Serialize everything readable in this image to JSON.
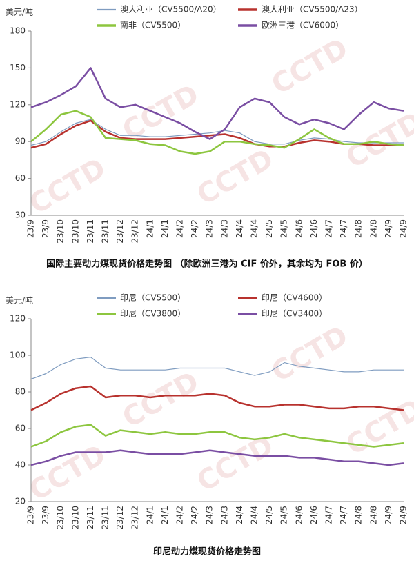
{
  "chart_data": [
    {
      "type": "line",
      "title": "国际主要动力煤现货价格走势图 （除欧洲三港为 CIF 价外，其余均为 FOB 价）",
      "y_label": "美元/吨",
      "watermark": "CCTD",
      "categories": [
        "23/9",
        "23/9",
        "23/10",
        "23/10",
        "23/11",
        "23/11",
        "23/12",
        "23/12",
        "24/1",
        "24/1",
        "24/2",
        "24/2",
        "24/3",
        "24/3",
        "24/4",
        "24/4",
        "24/5",
        "24/5",
        "24/6",
        "24/6",
        "24/7",
        "24/7",
        "24/8",
        "24/8",
        "24/9",
        "24/9"
      ],
      "ylim": [
        30,
        180
      ],
      "yticks": [
        30,
        60,
        90,
        120,
        150,
        180
      ],
      "series": [
        {
          "name": "澳大利亚（CV5500/A20）",
          "color": "#7f9cc0",
          "width": 1.2,
          "values": [
            87,
            90,
            98,
            105,
            108,
            100,
            95,
            95,
            94,
            94,
            95,
            96,
            97,
            99,
            97,
            90,
            88,
            88,
            91,
            93,
            92,
            90,
            89,
            89,
            89,
            89
          ]
        },
        {
          "name": "澳大利亚（CV5500/A23）",
          "color": "#b8322e",
          "width": 2.5,
          "values": [
            85,
            88,
            96,
            103,
            107,
            98,
            93,
            92,
            92,
            92,
            93,
            94,
            95,
            96,
            93,
            88,
            86,
            86,
            89,
            91,
            90,
            88,
            88,
            87,
            87,
            87
          ]
        },
        {
          "name": "南非（CV5500）",
          "color": "#8dc63f",
          "width": 2.5,
          "values": [
            90,
            100,
            112,
            115,
            110,
            93,
            92,
            91,
            88,
            87,
            82,
            80,
            82,
            90,
            90,
            88,
            87,
            85,
            92,
            100,
            93,
            88,
            88,
            90,
            88,
            87
          ]
        },
        {
          "name": "欧洲三港（CV6000）",
          "color": "#7a4ea3",
          "width": 2.5,
          "values": [
            118,
            122,
            128,
            135,
            150,
            125,
            118,
            120,
            115,
            110,
            105,
            98,
            92,
            100,
            118,
            125,
            122,
            110,
            104,
            108,
            105,
            100,
            112,
            122,
            117,
            115
          ]
        }
      ]
    },
    {
      "type": "line",
      "title": "印尼动力煤现货价格走势图",
      "y_label": "美元/吨",
      "watermark": "CCTD",
      "categories": [
        "23/9",
        "23/9",
        "23/10",
        "23/10",
        "23/11",
        "23/11",
        "23/12",
        "23/12",
        "24/1",
        "24/1",
        "24/2",
        "24/2",
        "24/3",
        "24/3",
        "24/4",
        "24/4",
        "24/5",
        "24/5",
        "24/6",
        "24/6",
        "24/7",
        "24/7",
        "24/8",
        "24/8",
        "24/9",
        "24/9"
      ],
      "ylim": [
        20,
        120
      ],
      "yticks": [
        20,
        40,
        60,
        80,
        100,
        120
      ],
      "series": [
        {
          "name": "印尼（CV5500）",
          "color": "#7f9cc0",
          "width": 1.2,
          "values": [
            87,
            90,
            95,
            98,
            99,
            93,
            92,
            92,
            92,
            92,
            93,
            93,
            93,
            93,
            91,
            89,
            91,
            96,
            94,
            93,
            92,
            91,
            91,
            92,
            92,
            92
          ]
        },
        {
          "name": "印尼（CV4600）",
          "color": "#b8322e",
          "width": 2.5,
          "values": [
            70,
            74,
            79,
            82,
            83,
            77,
            78,
            78,
            77,
            78,
            78,
            78,
            79,
            78,
            74,
            72,
            72,
            73,
            73,
            72,
            71,
            71,
            72,
            72,
            71,
            70
          ]
        },
        {
          "name": "印尼（CV3800）",
          "color": "#8dc63f",
          "width": 2.5,
          "values": [
            50,
            53,
            58,
            61,
            62,
            56,
            59,
            58,
            57,
            58,
            57,
            57,
            58,
            58,
            55,
            54,
            55,
            57,
            55,
            54,
            53,
            52,
            51,
            50,
            51,
            52
          ]
        },
        {
          "name": "印尼（CV3400）",
          "color": "#7a4ea3",
          "width": 2.5,
          "values": [
            40,
            42,
            45,
            47,
            47,
            47,
            48,
            47,
            46,
            46,
            46,
            47,
            48,
            47,
            46,
            45,
            45,
            45,
            44,
            44,
            43,
            42,
            42,
            41,
            40,
            41
          ]
        }
      ]
    }
  ]
}
